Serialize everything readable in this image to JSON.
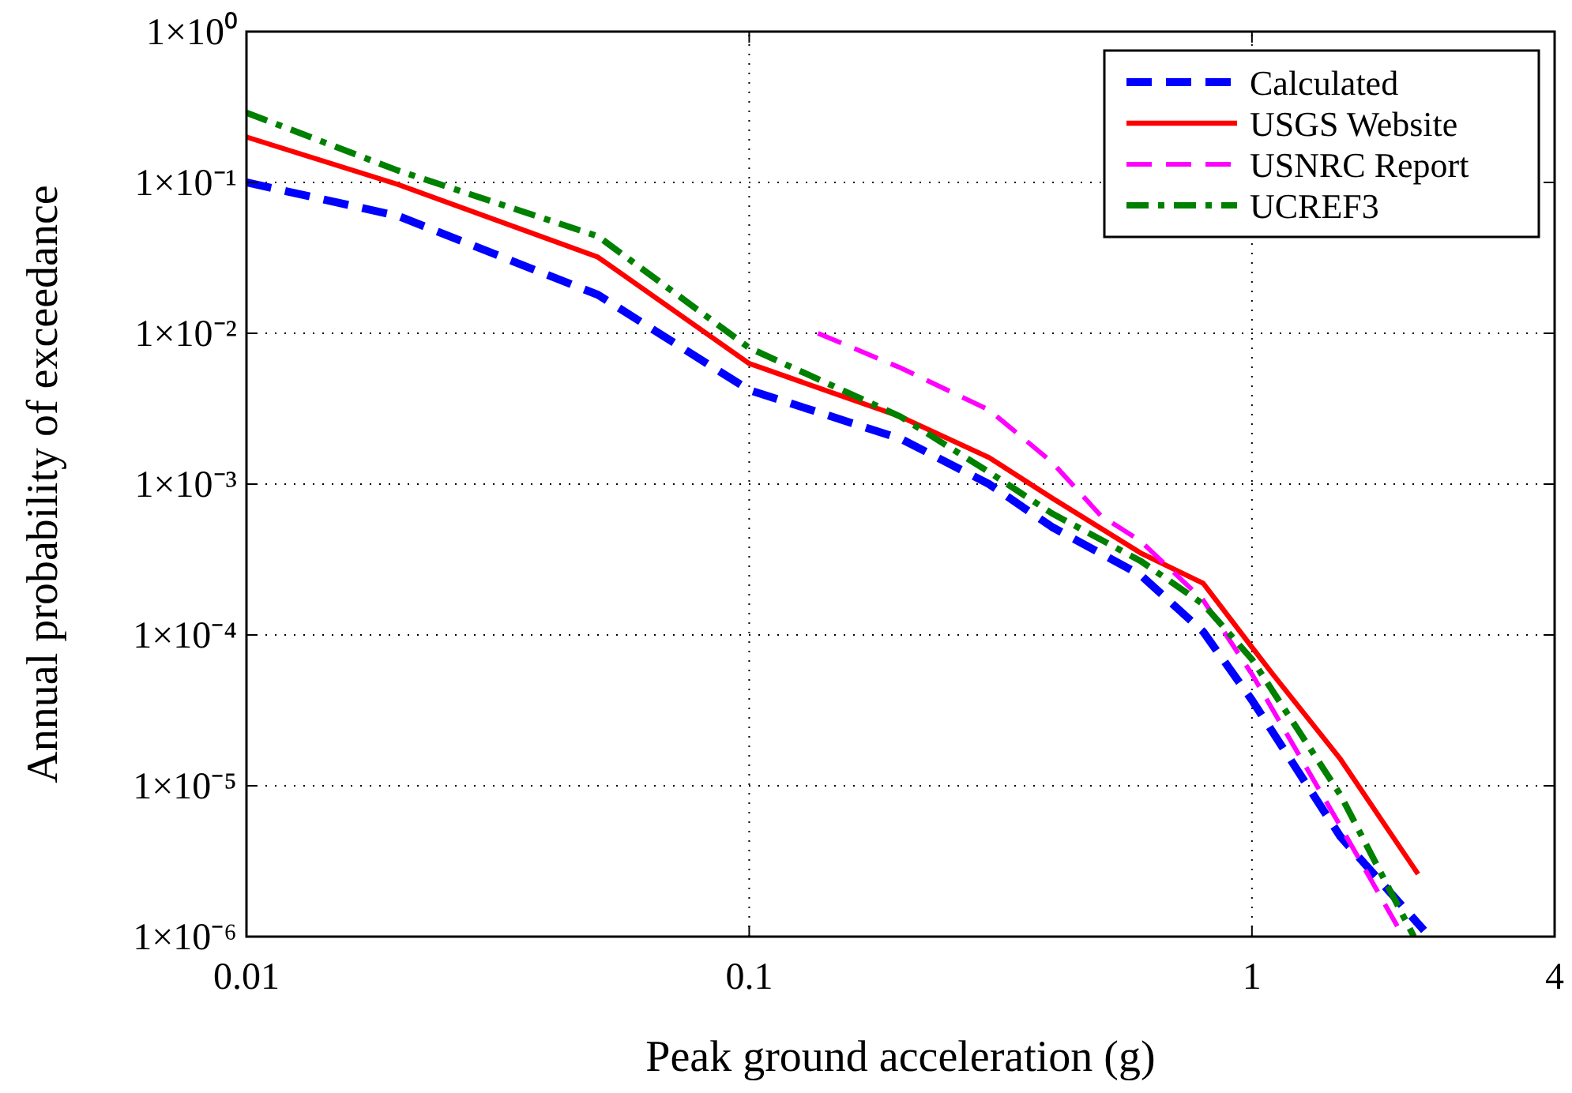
{
  "chart_data": {
    "type": "line",
    "xlabel": "Peak ground acceleration   (g)",
    "ylabel": "Annual probability of exceedance",
    "log": "xy",
    "grid": true,
    "legend": "top right",
    "xlim": [
      0.01,
      4
    ],
    "xticks": [
      0.01,
      0.1,
      1,
      4
    ],
    "ylim": [
      1e-06,
      1
    ],
    "yticks": [
      {
        "value": 1,
        "label": "1×10⁰"
      },
      {
        "value": 0.1,
        "label": "1×10⁻¹"
      },
      {
        "value": 0.01,
        "label": "1×10⁻²"
      },
      {
        "value": 0.001,
        "label": "1×10⁻³"
      },
      {
        "value": 0.0001,
        "label": "1×10⁻⁴"
      },
      {
        "value": 1e-05,
        "label": "1×10⁻⁵"
      },
      {
        "value": 1e-06,
        "label": "1×10⁻⁶"
      }
    ],
    "series": [
      {
        "name": "Calculated",
        "color": "#0000ff",
        "line_style": "dashed",
        "x": [
          0.01,
          0.02,
          0.05,
          0.1,
          0.2,
          0.3,
          0.4,
          0.6,
          0.8,
          1,
          1.5,
          2.2
        ],
        "values": [
          0.1,
          0.06,
          0.018,
          0.0042,
          0.002,
          0.001,
          0.00052,
          0.00025,
          0.000105,
          3.7e-05,
          4.6e-06,
          1.1e-06
        ]
      },
      {
        "name": "USGS Website",
        "color": "#ff0000",
        "line_style": "solid",
        "x": [
          0.01,
          0.02,
          0.05,
          0.1,
          0.2,
          0.3,
          0.4,
          0.6,
          0.8,
          1,
          1.1,
          1.5,
          2.14
        ],
        "values": [
          0.2,
          0.097,
          0.032,
          0.0063,
          0.0028,
          0.0015,
          0.00081,
          0.00035,
          0.00022,
          8.3e-05,
          5.5e-05,
          1.5e-05,
          2.6e-06
        ]
      },
      {
        "name": "USNRC Report",
        "color": "#ff00ff",
        "line_style": "dashed",
        "x": [
          0.137,
          0.2,
          0.3,
          0.4,
          0.5,
          0.6,
          0.8,
          1,
          1.5,
          2
        ],
        "values": [
          0.01,
          0.0059,
          0.0031,
          0.0014,
          0.00062,
          0.00042,
          0.00017,
          5.5e-05,
          5.4e-06,
          1e-06
        ]
      },
      {
        "name": "UCREF3",
        "color": "#008000",
        "line_style": "dashdot",
        "x": [
          0.01,
          0.02,
          0.05,
          0.1,
          0.2,
          0.3,
          0.4,
          0.6,
          0.8,
          1,
          1.5,
          2.1
        ],
        "values": [
          0.29,
          0.12,
          0.044,
          0.008,
          0.0028,
          0.0012,
          0.00064,
          0.00031,
          0.00016,
          6.9e-05,
          8.7e-06,
          1e-06
        ]
      }
    ]
  }
}
